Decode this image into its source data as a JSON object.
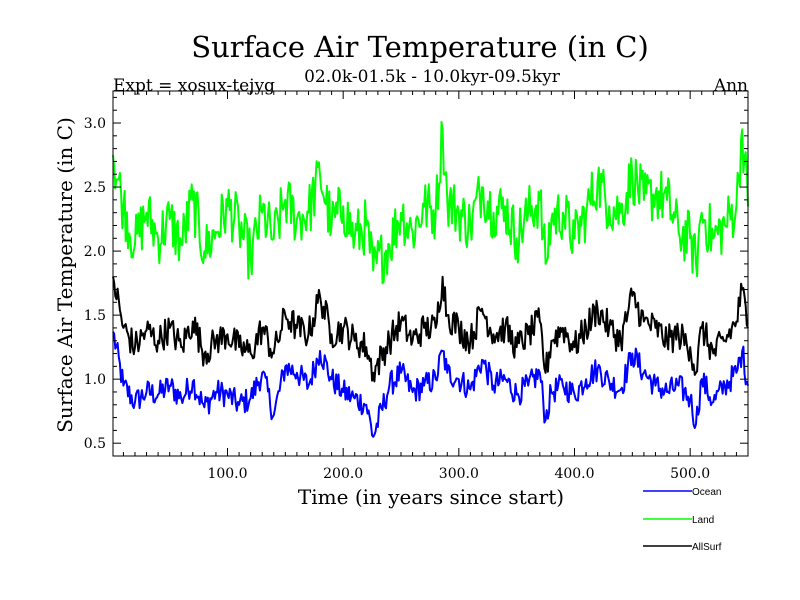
{
  "chart_data": {
    "type": "line",
    "title": "Surface Air Temperature (in C)",
    "subtitle": "02.0k-01.5k - 10.0kyr-09.5kyr",
    "left_label": "Expt = xosux-tejyg",
    "right_label": "Ann",
    "xlabel": "Time (in years since start)",
    "ylabel": "Surface Air Temperature (in C)",
    "xlim": [
      1,
      550
    ],
    "ylim": [
      0.4,
      3.25
    ],
    "xticks": [
      100,
      200,
      300,
      400,
      500
    ],
    "xtick_labels": [
      "100.0",
      "200.0",
      "300.0",
      "400.0",
      "500.0"
    ],
    "yticks": [
      0.5,
      1.0,
      1.5,
      2.0,
      2.5,
      3.0
    ],
    "ytick_labels": [
      "0.5",
      "1.0",
      "1.5",
      "2.0",
      "2.5",
      "3.0"
    ],
    "legend_position": "bottom-right",
    "series": [
      {
        "name": "Ocean",
        "color": "#0000ff",
        "x": [
          1,
          10,
          20,
          30,
          40,
          50,
          60,
          70,
          80,
          90,
          100,
          110,
          120,
          130,
          140,
          150,
          160,
          170,
          180,
          190,
          200,
          210,
          220,
          226,
          240,
          250,
          260,
          270,
          280,
          286,
          290,
          300,
          310,
          320,
          330,
          340,
          350,
          360,
          370,
          375,
          380,
          390,
          400,
          410,
          420,
          430,
          440,
          450,
          460,
          470,
          480,
          490,
          500,
          505,
          510,
          520,
          530,
          540,
          545,
          550
        ],
        "values": [
          1.37,
          0.95,
          0.82,
          0.9,
          0.88,
          0.95,
          0.85,
          0.98,
          0.78,
          0.9,
          0.88,
          0.8,
          0.85,
          1.05,
          0.72,
          1.1,
          1.05,
          0.95,
          1.22,
          1.0,
          0.9,
          0.85,
          0.8,
          0.55,
          0.95,
          1.05,
          0.9,
          0.95,
          1.0,
          1.22,
          1.05,
          1.0,
          0.92,
          1.15,
          0.95,
          1.0,
          0.88,
          0.95,
          1.05,
          0.68,
          0.9,
          0.95,
          0.88,
          1.0,
          1.08,
          0.98,
          0.92,
          1.2,
          1.05,
          0.95,
          0.9,
          0.95,
          0.85,
          0.65,
          1.0,
          0.82,
          0.95,
          1.05,
          1.22,
          0.95
        ]
      },
      {
        "name": "Land",
        "color": "#00ff00",
        "x": [
          1,
          10,
          20,
          30,
          40,
          50,
          60,
          70,
          80,
          90,
          100,
          110,
          120,
          130,
          140,
          150,
          160,
          170,
          180,
          190,
          200,
          210,
          220,
          226,
          240,
          250,
          260,
          270,
          280,
          286,
          290,
          300,
          310,
          320,
          330,
          340,
          350,
          360,
          370,
          375,
          380,
          390,
          400,
          410,
          420,
          430,
          440,
          450,
          460,
          470,
          480,
          490,
          500,
          505,
          510,
          520,
          530,
          540,
          545,
          550
        ],
        "values": [
          2.75,
          2.35,
          2.05,
          2.3,
          2.1,
          2.25,
          2.05,
          2.4,
          2.0,
          2.15,
          2.35,
          2.2,
          1.95,
          2.3,
          2.1,
          2.4,
          2.25,
          2.3,
          2.6,
          2.2,
          2.35,
          2.1,
          2.2,
          1.85,
          2.05,
          2.3,
          2.15,
          2.35,
          2.3,
          2.95,
          2.4,
          2.3,
          2.2,
          2.5,
          2.3,
          2.35,
          2.1,
          2.3,
          2.4,
          1.9,
          2.25,
          2.3,
          2.1,
          2.3,
          2.55,
          2.35,
          2.3,
          2.6,
          2.4,
          2.45,
          2.4,
          2.15,
          2.1,
          1.9,
          2.3,
          2.1,
          2.2,
          2.35,
          2.95,
          2.35
        ]
      },
      {
        "name": "AllSurf",
        "color": "#000000",
        "x": [
          1,
          10,
          20,
          30,
          40,
          50,
          60,
          70,
          80,
          90,
          100,
          110,
          120,
          130,
          140,
          150,
          160,
          170,
          180,
          190,
          200,
          210,
          220,
          226,
          240,
          250,
          260,
          270,
          280,
          286,
          290,
          300,
          310,
          320,
          330,
          340,
          350,
          360,
          370,
          375,
          380,
          390,
          400,
          410,
          420,
          430,
          440,
          450,
          460,
          470,
          480,
          490,
          500,
          505,
          510,
          520,
          530,
          540,
          545,
          550
        ],
        "values": [
          1.8,
          1.4,
          1.25,
          1.38,
          1.3,
          1.4,
          1.25,
          1.45,
          1.2,
          1.3,
          1.35,
          1.25,
          1.2,
          1.4,
          1.2,
          1.5,
          1.4,
          1.35,
          1.65,
          1.35,
          1.4,
          1.3,
          1.25,
          1.05,
          1.3,
          1.45,
          1.3,
          1.4,
          1.4,
          1.8,
          1.5,
          1.4,
          1.3,
          1.55,
          1.35,
          1.4,
          1.25,
          1.35,
          1.45,
          1.05,
          1.3,
          1.4,
          1.25,
          1.4,
          1.55,
          1.4,
          1.3,
          1.65,
          1.45,
          1.4,
          1.3,
          1.35,
          1.25,
          1.05,
          1.4,
          1.2,
          1.3,
          1.45,
          1.7,
          1.4
        ]
      }
    ]
  }
}
